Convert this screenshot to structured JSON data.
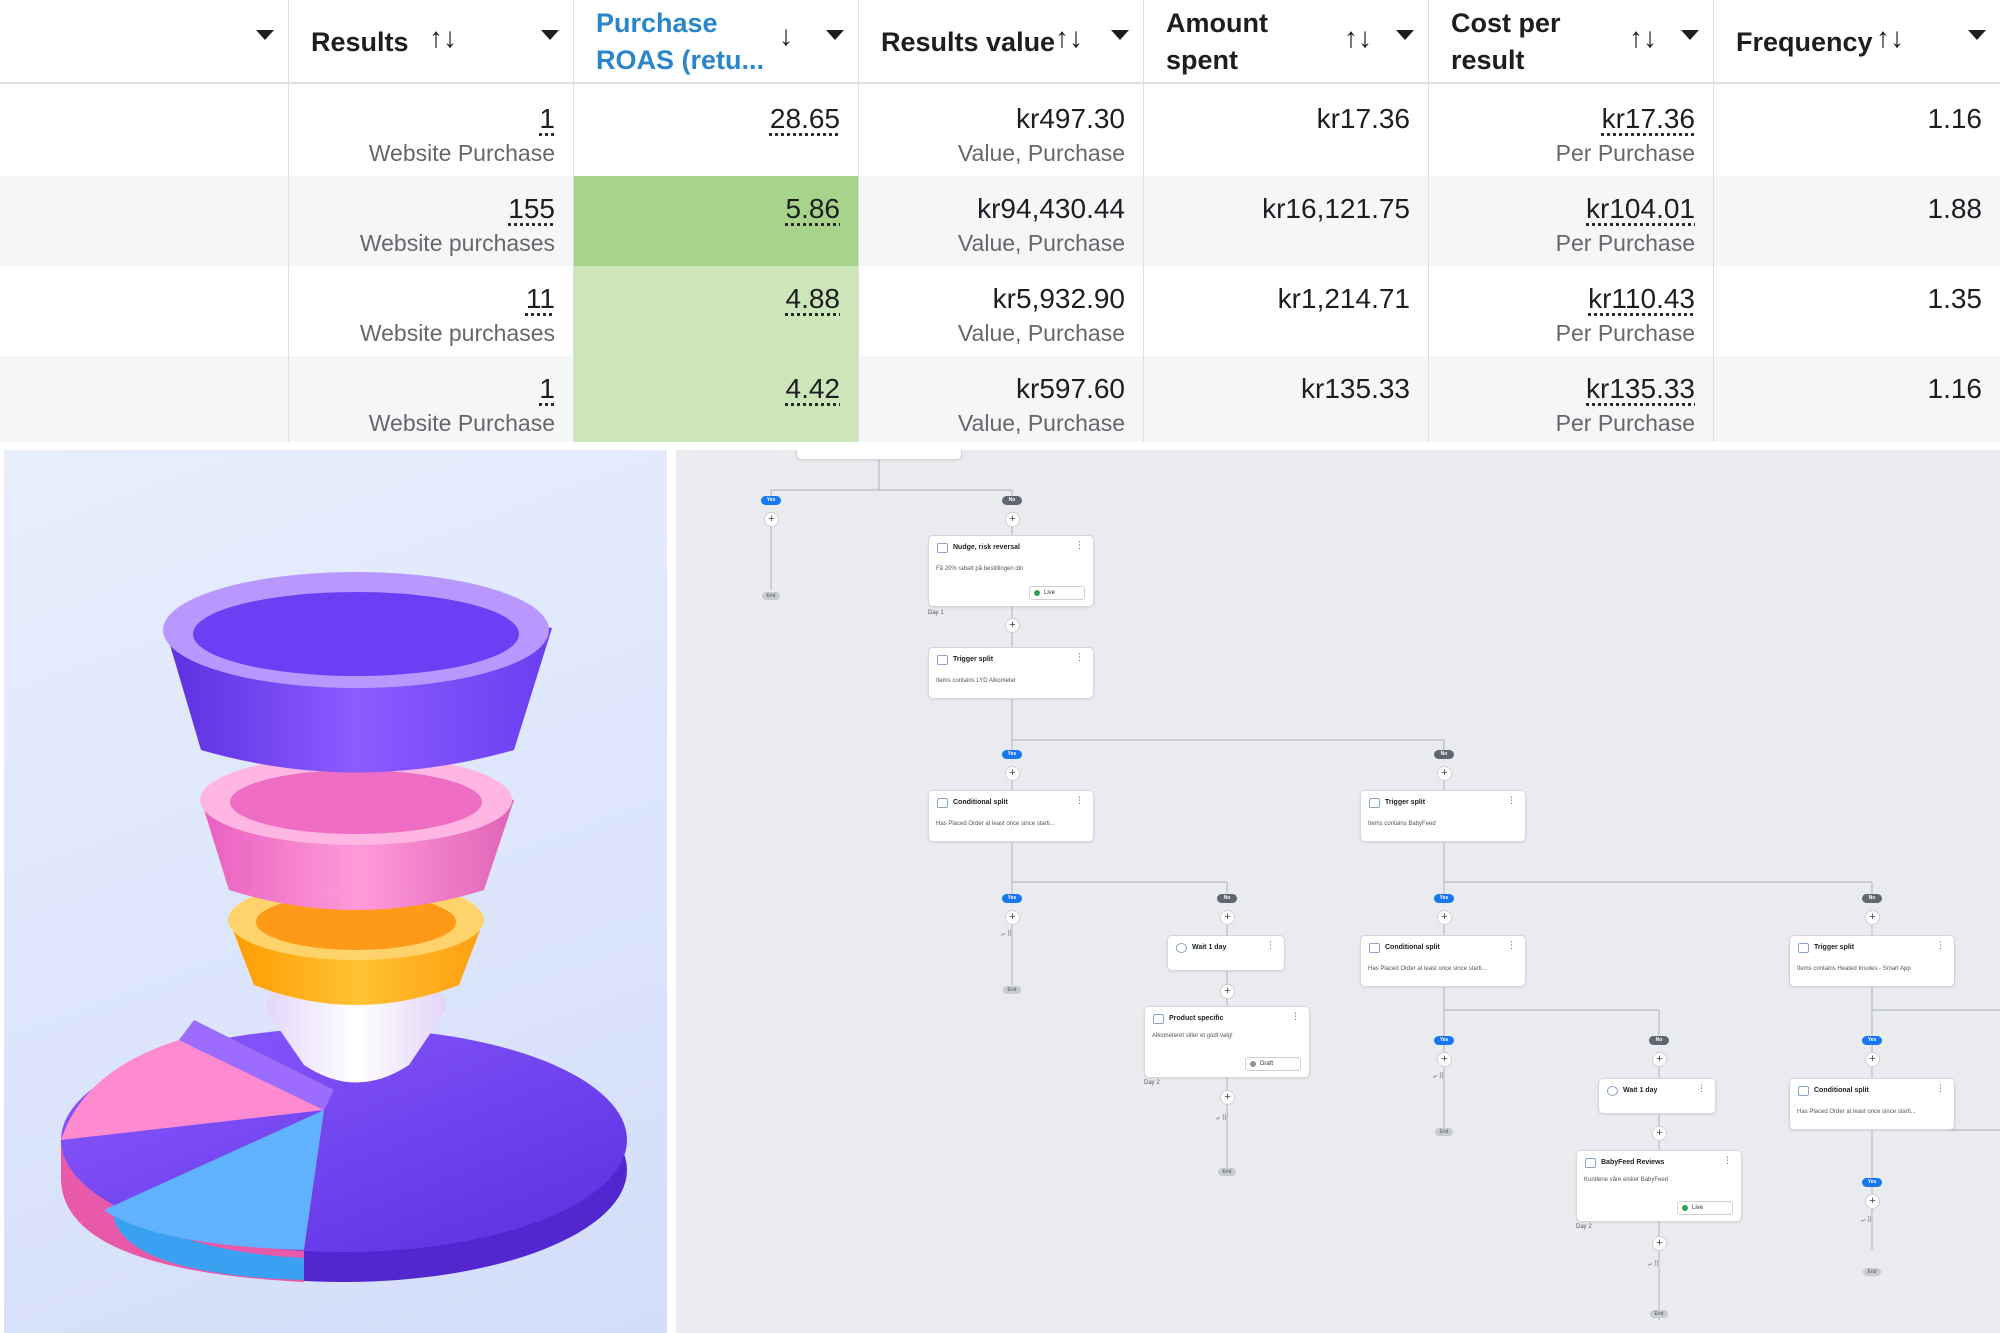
{
  "table": {
    "headers": [
      {
        "label": "",
        "sort_icon": ""
      },
      {
        "label": "Results",
        "sort_icon": "↑↓"
      },
      {
        "label": "Purchase ROAS (retu...",
        "sort_icon": "↓"
      },
      {
        "label": "Results value",
        "sort_icon": "↑↓"
      },
      {
        "label": "Amount spent",
        "sort_icon": "↑↓"
      },
      {
        "label": "Cost per result",
        "sort_icon": "↑↓"
      },
      {
        "label": "Frequency",
        "sort_icon": "↑↓"
      }
    ],
    "rows": [
      {
        "results": "1",
        "results_sub": "Website Purchase",
        "roas": "28.65",
        "value": "kr497.30",
        "value_sub": "Value, Purchase",
        "spent": "kr17.36",
        "cpr": "kr17.36",
        "cpr_sub": "Per Purchase",
        "freq": "1.16"
      },
      {
        "results": "155",
        "results_sub": "Website purchases",
        "roas": "5.86",
        "value": "kr94,430.44",
        "value_sub": "Value, Purchase",
        "spent": "kr16,121.75",
        "cpr": "kr104.01",
        "cpr_sub": "Per Purchase",
        "freq": "1.88"
      },
      {
        "results": "11",
        "results_sub": "Website purchases",
        "roas": "4.88",
        "value": "kr5,932.90",
        "value_sub": "Value, Purchase",
        "spent": "kr1,214.71",
        "cpr": "kr110.43",
        "cpr_sub": "Per Purchase",
        "freq": "1.35"
      },
      {
        "results": "1",
        "results_sub": "Website Purchase",
        "roas": "4.42",
        "value": "kr597.60",
        "value_sub": "Value, Purchase",
        "spent": "kr135.33",
        "cpr": "kr135.33",
        "cpr_sub": "Per Purchase",
        "freq": "1.16"
      }
    ],
    "colors": {
      "active_header": "#2a86c8",
      "roas_highlight_strong": "#a8d38b",
      "roas_highlight_light": "#cde6b9"
    }
  },
  "funnel_illustration": {
    "icon": "funnel-pie-chart-illustration",
    "colors": [
      "#7b4dff",
      "#f07ac8",
      "#ffb31a",
      "#f3eefc",
      "#5aa7f0"
    ]
  },
  "flow": {
    "labels": {
      "yes": "Yes",
      "no": "No",
      "end": "End"
    },
    "nodes": [
      {
        "id": "n1",
        "title": "Nudge, risk reversal",
        "sub": "Få 20% rabatt på bestillingen din",
        "status": "Live",
        "day": "Day 1"
      },
      {
        "id": "n2",
        "title": "Trigger split",
        "sub": "Items contains LYD Alkometer"
      },
      {
        "id": "n3",
        "title": "Conditional split",
        "sub": "Has Placed Order at least once since starti..."
      },
      {
        "id": "n4",
        "title": "Trigger split",
        "sub": "Items contains BabyFeed"
      },
      {
        "id": "n5",
        "title": "Wait 1 day",
        "sub": ""
      },
      {
        "id": "n6",
        "title": "Conditional split",
        "sub": "Has Placed Order at least once since starti..."
      },
      {
        "id": "n7",
        "title": "Trigger split",
        "sub": "Items contains Heated Insoles - Smart App"
      },
      {
        "id": "n8",
        "title": "Product specific",
        "sub": "Alkometeret sliter et godt valg!",
        "status": "Draft",
        "day": "Day 2"
      },
      {
        "id": "n9",
        "title": "Wait 1 day",
        "sub": ""
      },
      {
        "id": "n10",
        "title": "Conditional split",
        "sub": "Has Placed Order at least once since starti..."
      },
      {
        "id": "n11",
        "title": "BabyFeed Reviews",
        "sub": "Kundene våre elsker BabyFeed",
        "status": "Live",
        "day": "Day 2"
      }
    ]
  }
}
